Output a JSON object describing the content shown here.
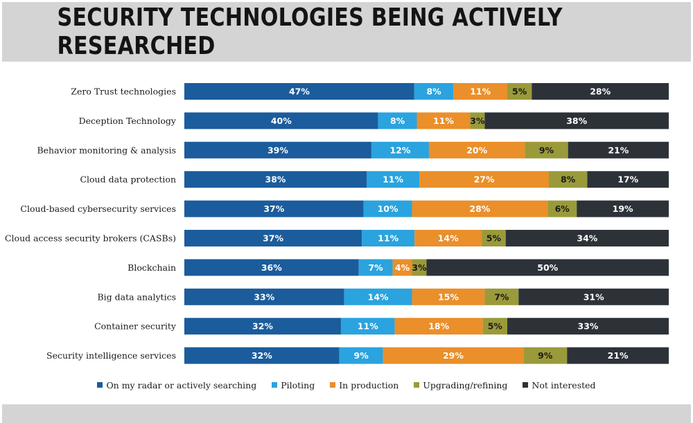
{
  "chart_data": {
    "type": "bar",
    "orientation": "horizontal",
    "stacked": true,
    "percent": true,
    "title": "SECURITY TECHNOLOGIES BEING ACTIVELY RESEARCHED",
    "categories": [
      "Zero Trust technologies",
      "Deception Technology",
      "Behavior monitoring & analysis",
      "Cloud data protection",
      "Cloud-based cybersecurity services",
      "Cloud access security brokers (CASBs)",
      "Blockchain",
      "Big data analytics",
      "Container security",
      "Security intelligence services"
    ],
    "series": [
      {
        "name": "On my radar or actively searching",
        "color": "#1b5c9c",
        "label_color": "#ffffff",
        "values": [
          47,
          40,
          39,
          38,
          37,
          37,
          36,
          33,
          32,
          32
        ]
      },
      {
        "name": "Piloting",
        "color": "#2aa3de",
        "label_color": "#ffffff",
        "values": [
          8,
          8,
          12,
          11,
          10,
          11,
          7,
          14,
          11,
          9
        ]
      },
      {
        "name": "In production",
        "color": "#ea8f2a",
        "label_color": "#ffffff",
        "values": [
          11,
          11,
          20,
          27,
          28,
          14,
          4,
          15,
          18,
          29
        ]
      },
      {
        "name": "Upgrading/refining",
        "color": "#9a9a3a",
        "label_color": "#1a1a1a",
        "values": [
          5,
          3,
          9,
          8,
          6,
          5,
          3,
          7,
          5,
          9
        ]
      },
      {
        "name": "Not interested",
        "color": "#2d3239",
        "label_color": "#ffffff",
        "values": [
          28,
          38,
          21,
          17,
          19,
          34,
          50,
          31,
          33,
          21
        ]
      }
    ],
    "value_suffix": "%",
    "legend_position": "bottom",
    "grid": false
  }
}
